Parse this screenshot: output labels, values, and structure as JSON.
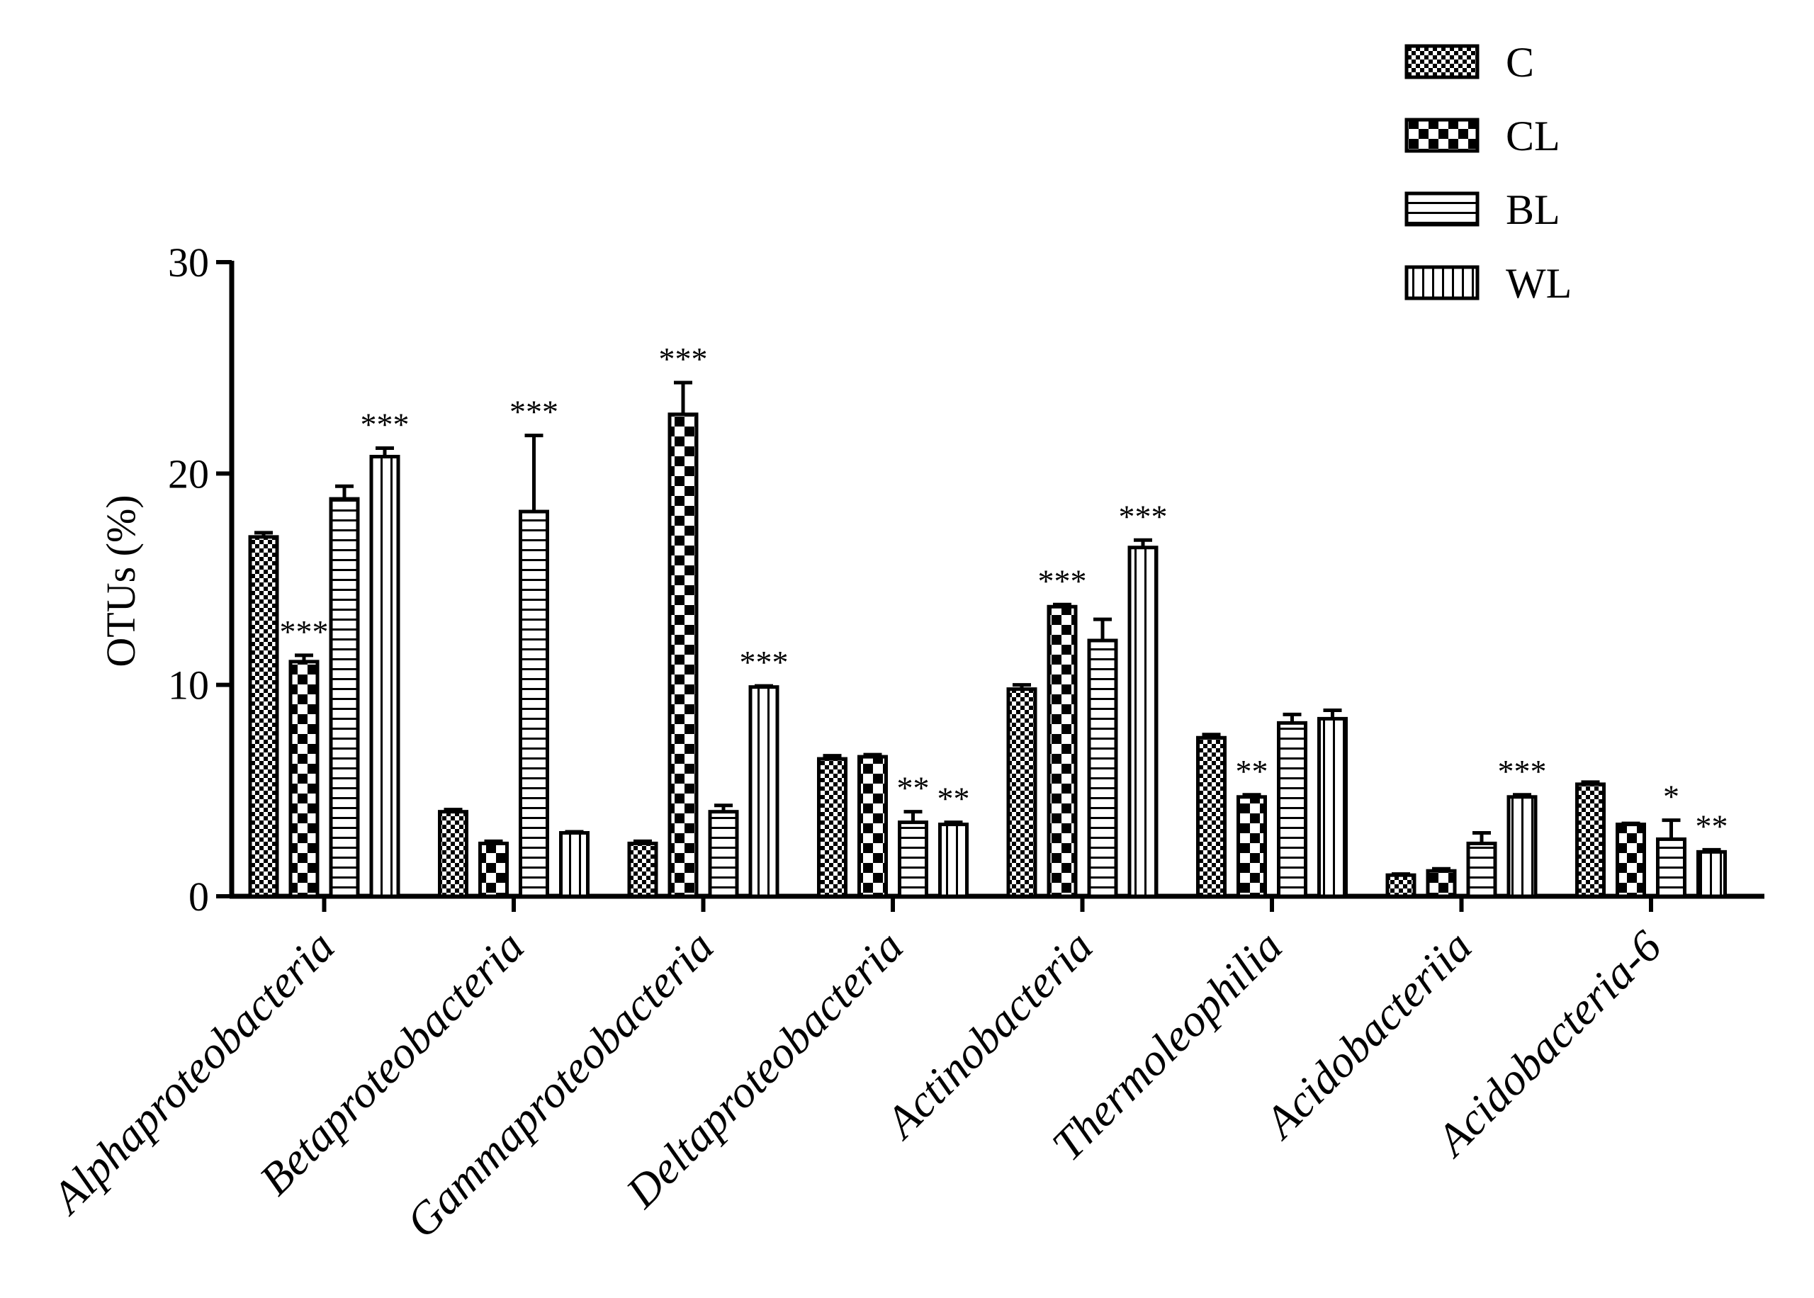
{
  "chart_data": {
    "type": "bar",
    "title": "",
    "xlabel": "",
    "ylabel": "OTUs (%)",
    "ylim": [
      0,
      30
    ],
    "yticks": [
      "0",
      "10",
      "20",
      "30"
    ],
    "legend_position": "top-right",
    "categories": [
      "Alphaproteobacteria",
      "Betaproteobacteria",
      "Gammaproteobacteria",
      "Deltaproteobacteria",
      "Actinobacteria",
      "Thermoleophilia",
      "Acidobacteriia",
      "Acidobacteria-6"
    ],
    "series": [
      {
        "name": "C",
        "pattern": "checker-fine",
        "values": [
          17.0,
          4.0,
          2.5,
          6.5,
          9.8,
          7.5,
          1.0,
          5.3
        ],
        "errors": [
          0.2,
          0.1,
          0.1,
          0.15,
          0.2,
          0.15,
          0.05,
          0.1
        ],
        "significance": [
          "",
          "",
          "",
          "",
          "",
          "",
          "",
          ""
        ]
      },
      {
        "name": "CL",
        "pattern": "checker-coarse",
        "values": [
          11.1,
          2.5,
          22.8,
          6.6,
          13.7,
          4.7,
          1.2,
          3.4
        ],
        "errors": [
          0.3,
          0.1,
          1.5,
          0.1,
          0.1,
          0.1,
          0.1,
          0.05
        ],
        "significance": [
          "***",
          "",
          "***",
          "",
          "***",
          "**",
          "",
          ""
        ]
      },
      {
        "name": "BL",
        "pattern": "horizontal",
        "values": [
          18.8,
          18.2,
          4.0,
          3.5,
          12.1,
          8.2,
          2.5,
          2.7
        ],
        "errors": [
          0.6,
          3.6,
          0.3,
          0.5,
          1.0,
          0.4,
          0.5,
          0.9
        ],
        "significance": [
          "",
          "***",
          "",
          "**",
          "",
          "",
          "",
          "*"
        ]
      },
      {
        "name": "WL",
        "pattern": "vertical",
        "values": [
          20.8,
          3.0,
          9.9,
          3.4,
          16.5,
          8.4,
          4.7,
          2.1
        ],
        "errors": [
          0.4,
          0.05,
          0.05,
          0.1,
          0.35,
          0.4,
          0.1,
          0.1
        ],
        "significance": [
          "***",
          "",
          "***",
          "**",
          "***",
          "",
          "***",
          "**"
        ]
      }
    ]
  }
}
